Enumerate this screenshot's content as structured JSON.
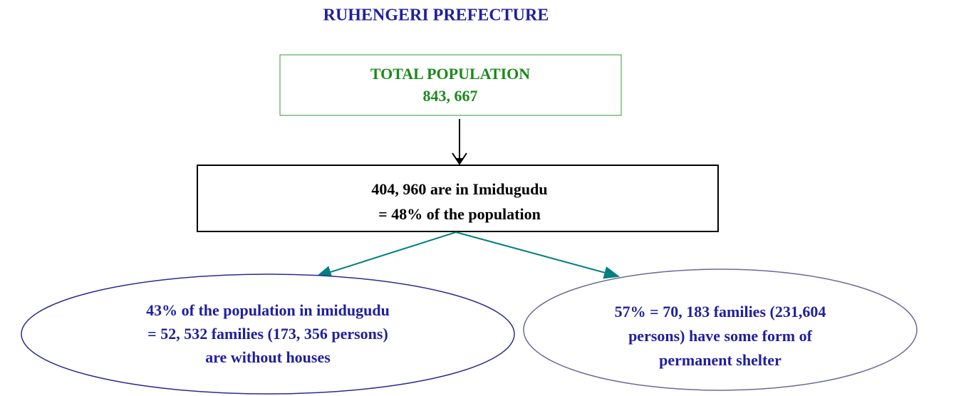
{
  "header": {
    "title": "RUHENGERI PREFECTURE"
  },
  "nodes": [
    {
      "lines": [
        "TOTAL POPULATION",
        "843, 667"
      ]
    },
    {
      "lines": [
        "404, 960 are in Imidugudu",
        "= 48% of the population"
      ]
    },
    {
      "lines": [
        "43% of the population in imidugudu",
        "= 52, 532 families (173, 356 persons)",
        "are without houses"
      ]
    },
    {
      "lines": [
        "57% = 70, 183 families (231,604",
        "persons) have some form of",
        "permanent shelter"
      ]
    }
  ]
}
